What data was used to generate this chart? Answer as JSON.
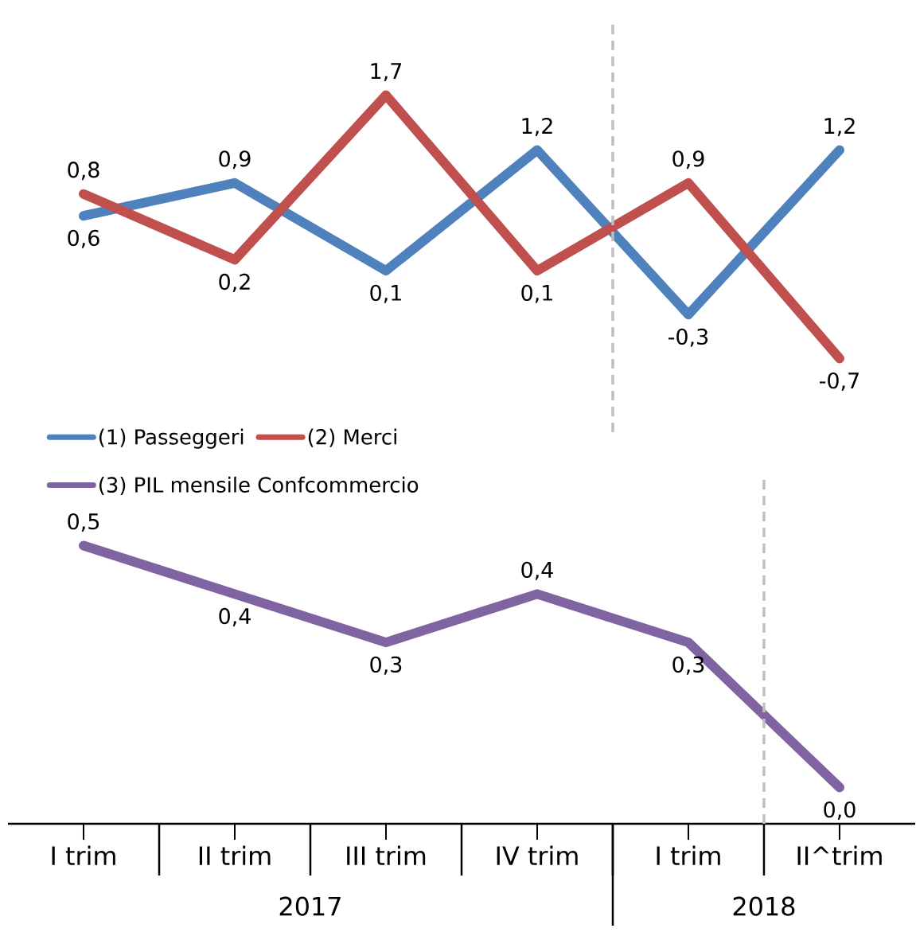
{
  "chart_data": [
    {
      "type": "line",
      "categories": [
        null,
        null,
        null,
        null,
        null,
        null
      ],
      "tick_labels": false,
      "legend": "bottom",
      "series": [
        {
          "name": "(1) Passeggeri",
          "color": "#4f81bd",
          "values": [
            0.6,
            0.9,
            0.1,
            1.2,
            -0.3,
            1.2
          ],
          "value_labels": [
            "0,6",
            "0,9",
            "0,1",
            "1,2",
            "-0,3",
            "1,2"
          ]
        },
        {
          "name": "(2) Merci",
          "color": "#c0504d",
          "values": [
            0.8,
            0.2,
            1.7,
            0.1,
            0.9,
            -0.7
          ],
          "value_labels": [
            "0,8",
            "0,2",
            "1,7",
            "0,1",
            "0,9",
            "-0,7"
          ]
        }
      ]
    },
    {
      "type": "line",
      "categories": [
        "I trim",
        "II trim",
        "III trim",
        "IV trim",
        "I trim",
        "II^trim"
      ],
      "legend": "top left",
      "series": [
        {
          "name": "(3) PIL mensile Confcommercio",
          "color": "#8064a2",
          "values": [
            0.5,
            0.4,
            0.3,
            0.4,
            0.3,
            0.0
          ],
          "value_labels": [
            "0,5",
            "0,4",
            "0,3",
            "0,4",
            "0,3",
            "0,0"
          ]
        }
      ],
      "annotations": [
        "2017",
        "2018"
      ]
    }
  ]
}
